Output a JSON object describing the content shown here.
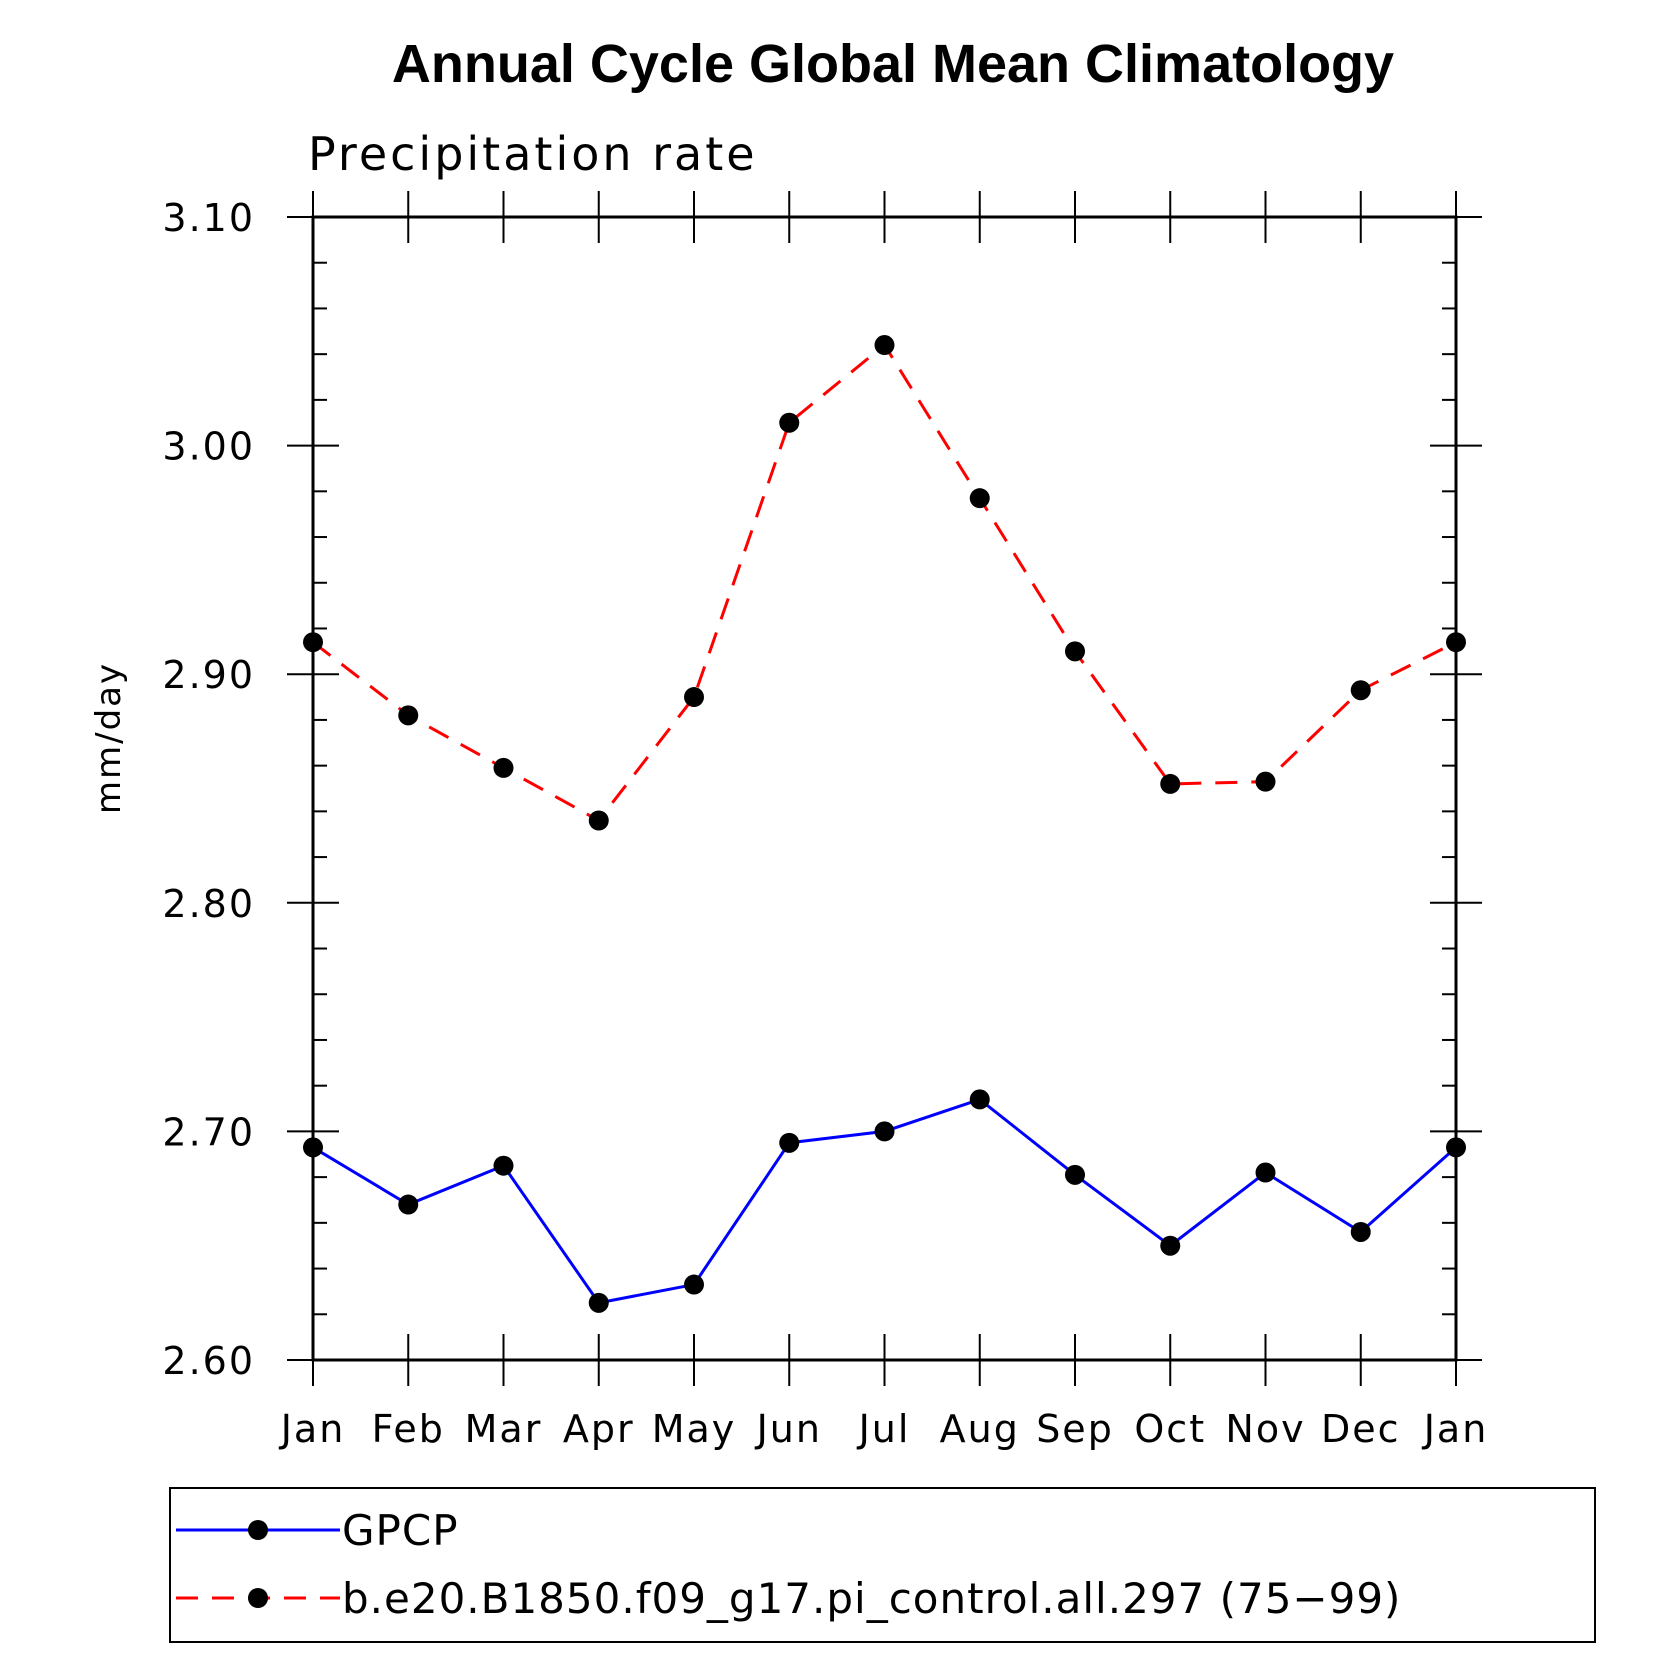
{
  "chart_data": {
    "type": "line",
    "title": "Annual Cycle Global Mean Climatology",
    "subtitle": "Precipitation rate",
    "xlabel": "",
    "ylabel": "mm/day",
    "ylim": [
      2.6,
      3.1
    ],
    "yticks": [
      "2.60",
      "2.70",
      "2.80",
      "2.90",
      "3.00",
      "3.10"
    ],
    "categories": [
      "Jan",
      "Feb",
      "Mar",
      "Apr",
      "May",
      "Jun",
      "Jul",
      "Aug",
      "Sep",
      "Oct",
      "Nov",
      "Dec",
      "Jan"
    ],
    "grid": false,
    "legend_position": "bottom",
    "series": [
      {
        "name": "GPCP",
        "color": "#0000ff",
        "dash": "solid",
        "marker_color": "#000000",
        "values": [
          2.693,
          2.668,
          2.685,
          2.625,
          2.633,
          2.695,
          2.7,
          2.714,
          2.681,
          2.65,
          2.682,
          2.656,
          2.693
        ]
      },
      {
        "name": "b.e20.B1850.f09_g17.pi_control.all.297 (75−99)",
        "color": "#ff0000",
        "dash": "dashed",
        "marker_color": "#000000",
        "values": [
          2.914,
          2.882,
          2.859,
          2.836,
          2.89,
          3.01,
          3.044,
          2.977,
          2.91,
          2.852,
          2.853,
          2.893,
          2.914
        ]
      }
    ]
  }
}
